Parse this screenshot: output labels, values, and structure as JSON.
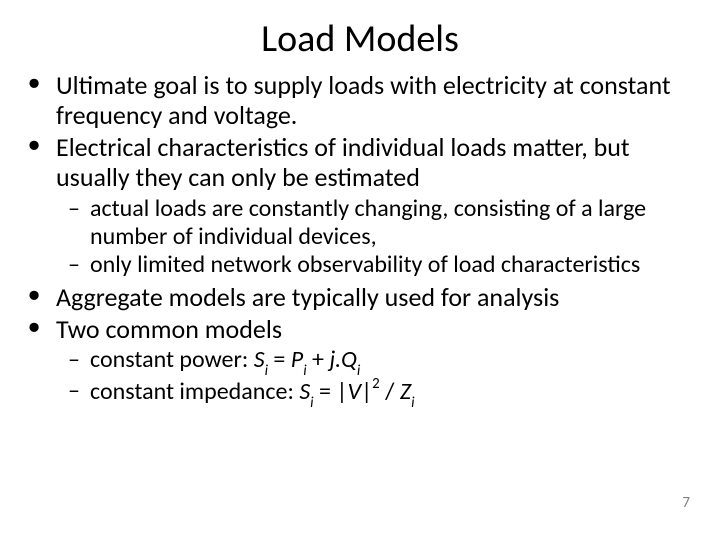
{
  "title": "Load Models",
  "bullets": {
    "b1": "Ultimate goal is to supply loads with electricity at constant frequency and voltage.",
    "b2": "Electrical characteristics of individual loads matter, but usually they can only be estimated",
    "b2s1": "actual loads are constantly changing, consisting of a large number of individual devices,",
    "b2s2": "only limited network observability of load characteristics",
    "b3": "Aggregate models are typically used for analysis",
    "b4": "Two common models",
    "b4s1_prefix": "constant power: ",
    "b4s2_prefix": "constant impedance: "
  },
  "formulas": {
    "cp": {
      "S": "S",
      "i": "i",
      "eq": " = ",
      "P": "P",
      "plus": " + ",
      "j": "j.",
      "Q": "Q"
    },
    "ci": {
      "S": "S",
      "i": "i",
      "eq": " = |",
      "V": "V",
      "bar": "|",
      "two": "2",
      "slash": " / ",
      "Z": "Z"
    }
  },
  "page_number": "7",
  "colors": {
    "text": "#000000",
    "background": "#ffffff",
    "pagenum": "#808080"
  }
}
